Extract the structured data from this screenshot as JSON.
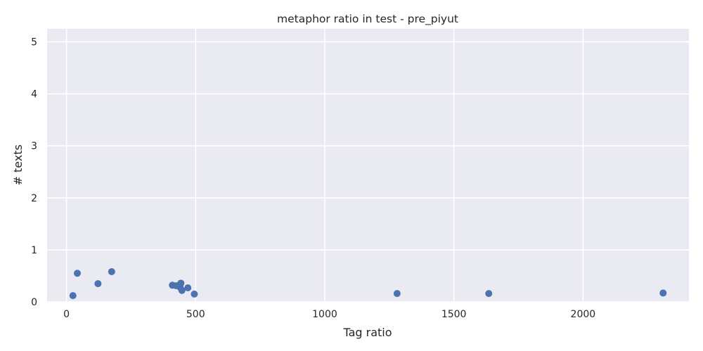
{
  "chart_data": {
    "type": "scatter",
    "title": "metaphor ratio in test - pre_piyut",
    "xlabel": "Tag ratio",
    "ylabel": "# texts",
    "xlim": [
      -75,
      2410
    ],
    "ylim": [
      0,
      5.25
    ],
    "xticks": [
      0,
      500,
      1000,
      1500,
      2000
    ],
    "yticks": [
      0,
      1,
      2,
      3,
      4,
      5
    ],
    "grid": true,
    "legend": "none",
    "colors": {
      "background": "#eaeaf2",
      "grid": "#ffffff",
      "marker": "#4c72b0"
    },
    "series": [
      {
        "points": [
          {
            "x": 25,
            "y": 0.12
          },
          {
            "x": 42,
            "y": 0.55
          },
          {
            "x": 122,
            "y": 0.35
          },
          {
            "x": 175,
            "y": 0.58
          },
          {
            "x": 410,
            "y": 0.32
          },
          {
            "x": 425,
            "y": 0.31
          },
          {
            "x": 443,
            "y": 0.36
          },
          {
            "x": 440,
            "y": 0.28
          },
          {
            "x": 447,
            "y": 0.22
          },
          {
            "x": 470,
            "y": 0.27
          },
          {
            "x": 495,
            "y": 0.15
          },
          {
            "x": 1280,
            "y": 0.16
          },
          {
            "x": 1635,
            "y": 0.16
          },
          {
            "x": 2310,
            "y": 0.17
          }
        ]
      }
    ]
  }
}
